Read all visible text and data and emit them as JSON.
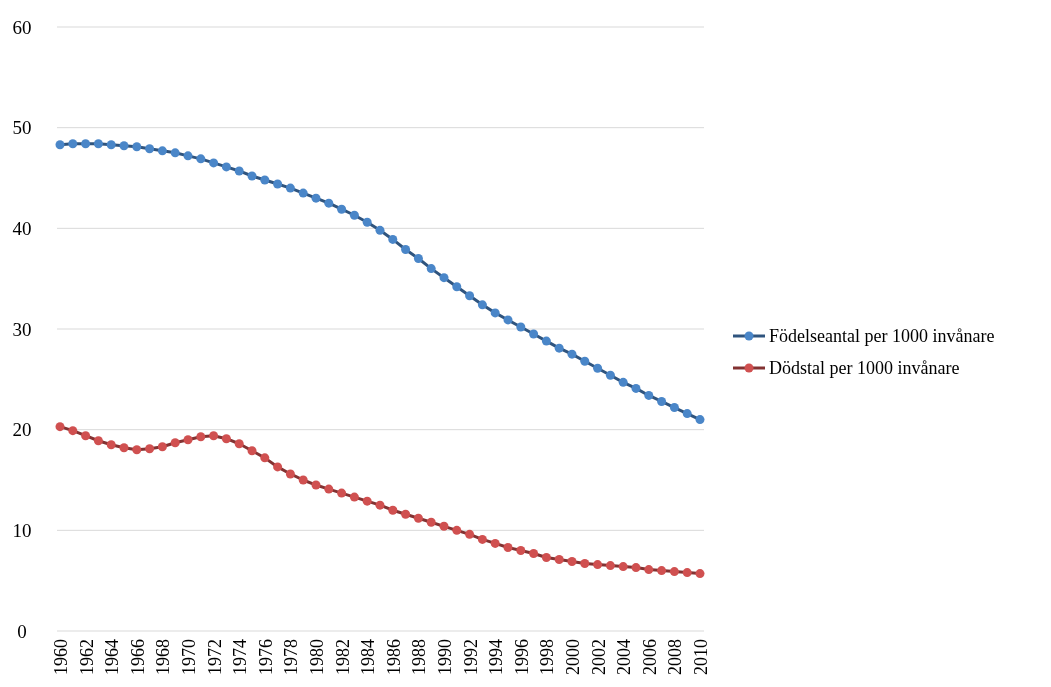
{
  "chart_data": {
    "type": "line",
    "categories": [
      "1960",
      null,
      "1962",
      null,
      "1964",
      null,
      "1966",
      null,
      "1968",
      null,
      "1970",
      null,
      "1972",
      null,
      "1974",
      null,
      "1976",
      null,
      "1978",
      null,
      "1980",
      null,
      "1982",
      null,
      "1984",
      null,
      "1986",
      null,
      "1988",
      null,
      "1990",
      null,
      "1992",
      null,
      "1994",
      null,
      "1996",
      null,
      "1998",
      null,
      "2000",
      null,
      "2002",
      null,
      "2004",
      null,
      "2006",
      null,
      "2008",
      null,
      "2010"
    ],
    "series": [
      {
        "name": "Födelseantal per 1000 invånare",
        "color": "#4a86c8",
        "values": [
          48.3,
          48.4,
          48.4,
          48.4,
          48.3,
          48.2,
          48.1,
          47.9,
          47.7,
          47.5,
          47.2,
          46.9,
          46.5,
          46.1,
          45.7,
          45.2,
          44.8,
          44.4,
          44.0,
          43.5,
          43.0,
          42.5,
          41.9,
          41.3,
          40.6,
          39.8,
          38.9,
          37.9,
          37.0,
          36.0,
          35.1,
          34.2,
          33.3,
          32.4,
          31.6,
          30.9,
          30.2,
          29.5,
          28.8,
          28.1,
          27.5,
          26.8,
          26.1,
          25.4,
          24.7,
          24.1,
          23.4,
          22.8,
          22.2,
          21.6,
          21.0
        ]
      },
      {
        "name": "Dödstal per 1000 invånare",
        "color": "#d05050",
        "values": [
          20.3,
          19.9,
          19.4,
          18.9,
          18.5,
          18.2,
          18.0,
          18.1,
          18.3,
          18.7,
          19.0,
          19.3,
          19.4,
          19.1,
          18.6,
          17.9,
          17.2,
          16.3,
          15.6,
          15.0,
          14.5,
          14.1,
          13.7,
          13.3,
          12.9,
          12.5,
          12.0,
          11.6,
          11.2,
          10.8,
          10.4,
          10.0,
          9.6,
          9.1,
          8.7,
          8.3,
          8.0,
          7.7,
          7.3,
          7.1,
          6.9,
          6.7,
          6.6,
          6.5,
          6.4,
          6.3,
          6.1,
          6.0,
          5.9,
          5.8,
          5.7
        ]
      }
    ],
    "ylim": [
      0,
      60
    ],
    "yticks": [
      0,
      10,
      20,
      30,
      40,
      50,
      60
    ],
    "grid": "y",
    "legend": "right",
    "marker": "circle",
    "line_style": "solid"
  }
}
